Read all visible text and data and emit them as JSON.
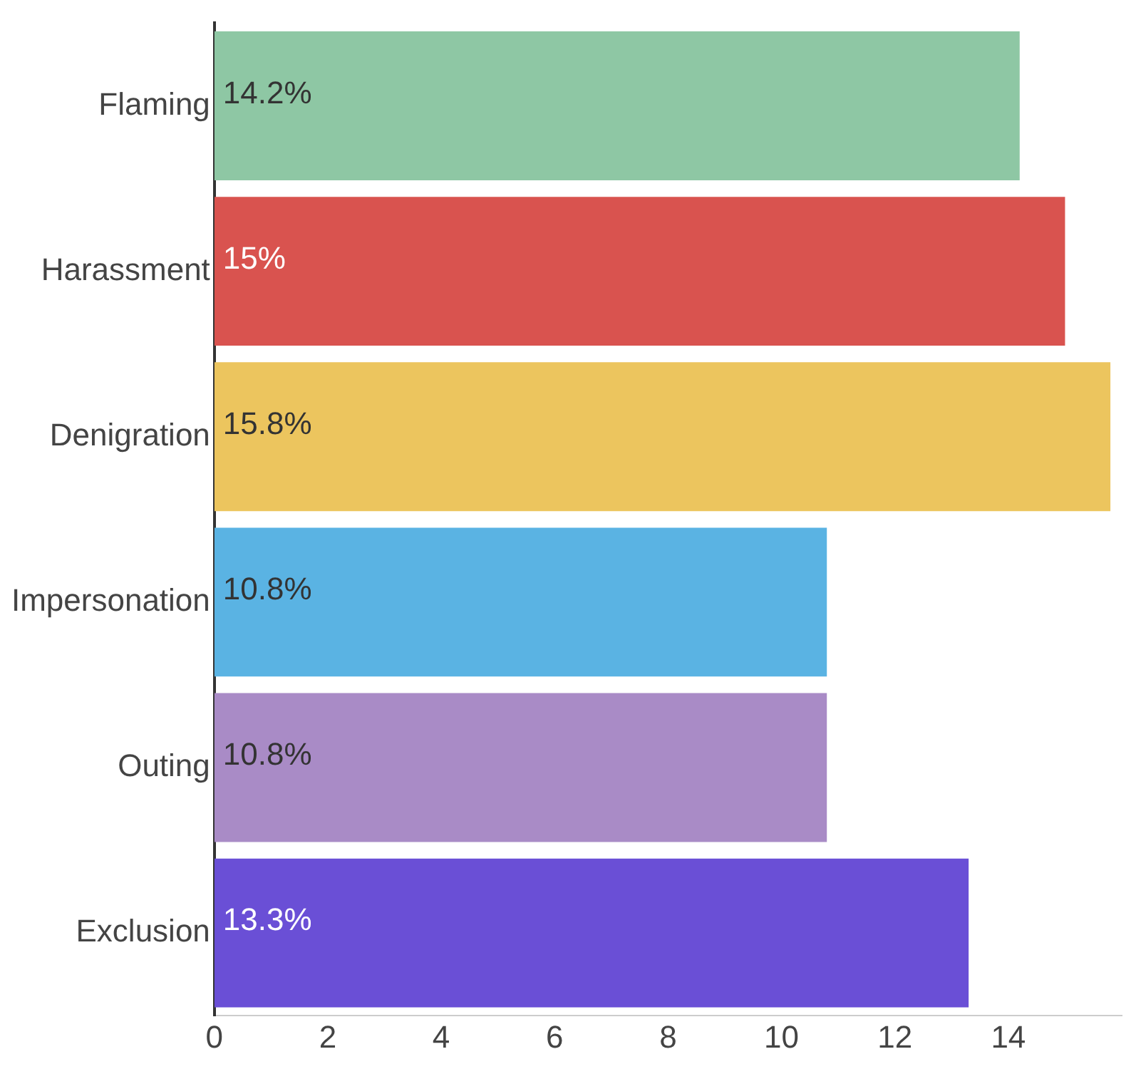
{
  "chart_data": {
    "type": "bar",
    "orientation": "horizontal",
    "categories": [
      "Flaming",
      "Harassment",
      "Denigration",
      "Impersonation",
      "Outing",
      "Exclusion"
    ],
    "values": [
      14.2,
      15,
      15.8,
      10.8,
      10.8,
      13.3
    ],
    "value_labels": [
      "14.2%",
      "15%",
      "15.8%",
      "10.8%",
      "10.8%",
      "13.3%"
    ],
    "colors": [
      "#8ec7a4",
      "#d9534f",
      "#ecc55e",
      "#5ab3e3",
      "#a98bc6",
      "#6a4fd6"
    ],
    "xlim": [
      0,
      16
    ],
    "xticks": [
      0,
      2,
      4,
      6,
      8,
      10,
      12,
      14
    ],
    "grid": false,
    "legend": false
  }
}
